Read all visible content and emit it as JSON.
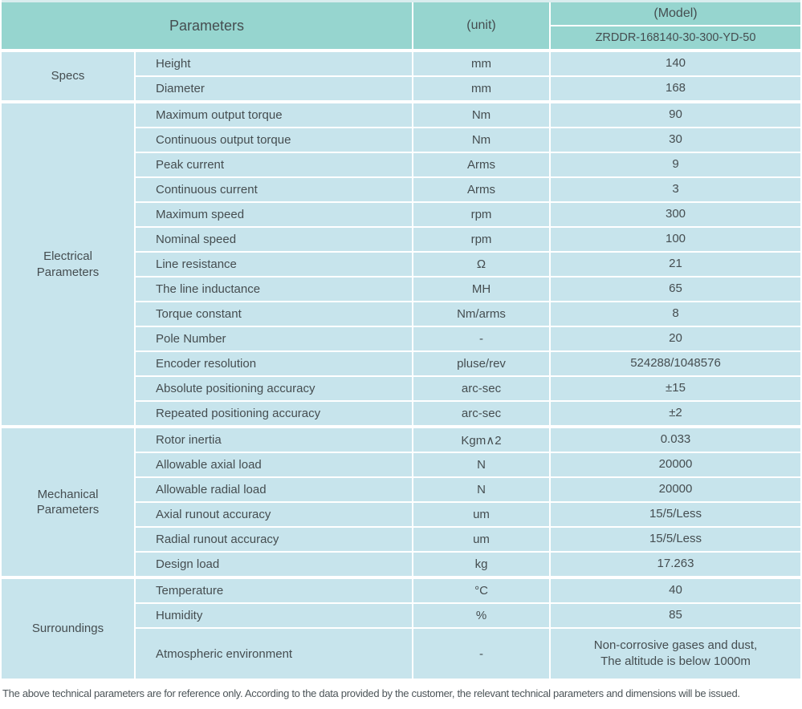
{
  "header": {
    "parameters_label": "Parameters",
    "unit_label": "(unit)",
    "model_label": "(Model)",
    "model_value": "ZRDDR-168140-30-300-YD-50"
  },
  "sections": [
    {
      "group": "Specs",
      "rows": [
        {
          "param": "Height",
          "unit": "mm",
          "value": "140"
        },
        {
          "param": "Diameter",
          "unit": "mm",
          "value": "168"
        }
      ]
    },
    {
      "group": "Electrical Parameters",
      "rows": [
        {
          "param": "Maximum output torque",
          "unit": "Nm",
          "value": "90"
        },
        {
          "param": "Continuous output torque",
          "unit": "Nm",
          "value": "30"
        },
        {
          "param": "Peak current",
          "unit": "Arms",
          "value": "9"
        },
        {
          "param": "Continuous current",
          "unit": "Arms",
          "value": "3"
        },
        {
          "param": "Maximum speed",
          "unit": "rpm",
          "value": "300"
        },
        {
          "param": "Nominal speed",
          "unit": "rpm",
          "value": "100"
        },
        {
          "param": "Line resistance",
          "unit": "Ω",
          "value": "21"
        },
        {
          "param": "The line inductance",
          "unit": "MH",
          "value": "65"
        },
        {
          "param": "Torque constant",
          "unit": "Nm/arms",
          "value": "8"
        },
        {
          "param": "Pole Number",
          "unit": "-",
          "value": "20"
        },
        {
          "param": "Encoder resolution",
          "unit": "pluse/rev",
          "value": "524288/1048576"
        },
        {
          "param": "Absolute positioning accuracy",
          "unit": "arc-sec",
          "value": "±15"
        },
        {
          "param": "Repeated positioning accuracy",
          "unit": "arc-sec",
          "value": "±2"
        }
      ]
    },
    {
      "group": "Mechanical Parameters",
      "rows": [
        {
          "param": "Rotor inertia",
          "unit": "Kgm∧2",
          "value": "0.033"
        },
        {
          "param": "Allowable axial load",
          "unit": "N",
          "value": "20000"
        },
        {
          "param": "Allowable radial load",
          "unit": "N",
          "value": "20000"
        },
        {
          "param": "Axial runout accuracy",
          "unit": "um",
          "value": "15/5/Less"
        },
        {
          "param": "Radial runout accuracy",
          "unit": "um",
          "value": "15/5/Less"
        },
        {
          "param": "Design load",
          "unit": "kg",
          "value": "17.263"
        }
      ]
    },
    {
      "group": "Surroundings",
      "rows": [
        {
          "param": "Temperature",
          "unit": "°C",
          "value": "40"
        },
        {
          "param": "Humidity",
          "unit": "%",
          "value": "85"
        },
        {
          "param": "Atmospheric environment",
          "unit": "-",
          "value": "Non-corrosive gases and dust,\nThe altitude is below 1000m"
        }
      ]
    }
  ],
  "footer": {
    "note": "The above technical parameters are for reference only. According to the data provided by the customer, the relevant technical parameters and dimensions will be issued."
  },
  "colors": {
    "header_bg": "#96d5cf",
    "cell_bg": "#c7e4ec",
    "divider": "#ffffff",
    "text": "#454d50",
    "footer_text": "#4d5559"
  }
}
